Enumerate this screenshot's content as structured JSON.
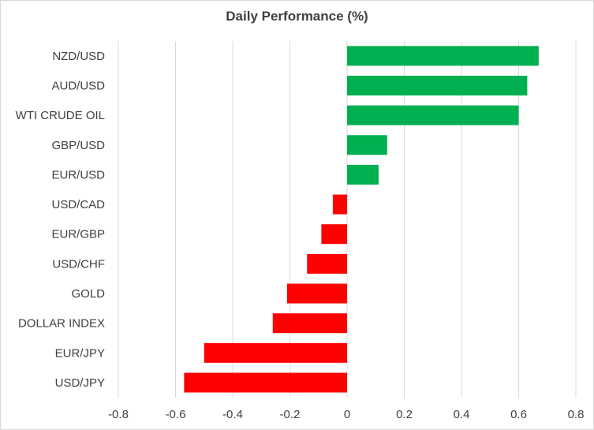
{
  "chart_data": {
    "type": "bar",
    "orientation": "horizontal",
    "title": "Daily Performance  (%)",
    "categories": [
      "NZD/USD",
      "AUD/USD",
      "WTI CRUDE OIL",
      "GBP/USD",
      "EUR/USD",
      "USD/CAD",
      "EUR/GBP",
      "USD/CHF",
      "GOLD",
      "DOLLAR INDEX",
      "EUR/JPY",
      "USD/JPY"
    ],
    "values": [
      0.67,
      0.63,
      0.6,
      0.14,
      0.11,
      -0.05,
      -0.09,
      -0.14,
      -0.21,
      -0.26,
      -0.5,
      -0.57
    ],
    "xlim": [
      -0.8,
      0.8
    ],
    "xticks": [
      "-0.8",
      "-0.6",
      "-0.4",
      "-0.2",
      "0",
      "0.2",
      "0.4",
      "0.6",
      "0.8"
    ],
    "grid": "vertical",
    "colors": {
      "positive": "#00b050",
      "negative": "#ff0000",
      "grid": "#d9d9d9",
      "text": "#404040"
    }
  }
}
